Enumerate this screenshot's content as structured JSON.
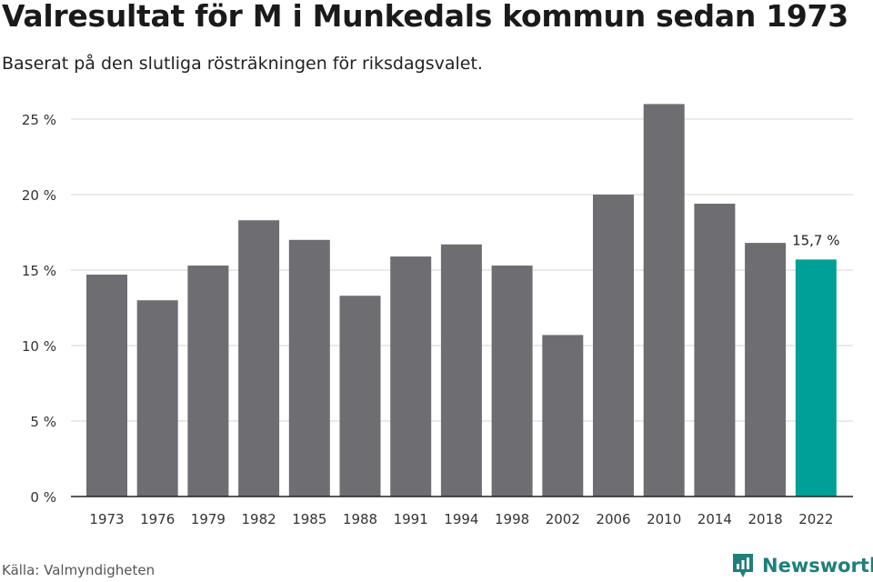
{
  "title": "Valresultat för M i Munkedals kommun sedan 1973",
  "subtitle": "Baserat på den slutliga rösträkningen för riksdagsvalet.",
  "source": "Källa: Valmyndigheten",
  "brand": {
    "name": "Newsworthy",
    "icon": "newsworthy-logo-icon",
    "color": "#1f7f7a"
  },
  "chart_data": {
    "type": "bar",
    "categories": [
      "1973",
      "1976",
      "1979",
      "1982",
      "1985",
      "1988",
      "1991",
      "1994",
      "1998",
      "2002",
      "2006",
      "2010",
      "2014",
      "2018",
      "2022"
    ],
    "values": [
      14.7,
      13.0,
      15.3,
      18.3,
      17.0,
      13.3,
      15.9,
      16.7,
      15.3,
      10.7,
      20.0,
      26.0,
      19.4,
      16.8,
      15.7
    ],
    "ylim": [
      0,
      27
    ],
    "yticks": [
      0,
      5,
      10,
      15,
      20,
      25
    ],
    "ytick_labels": [
      "0 %",
      "5 %",
      "10 %",
      "15 %",
      "20 %",
      "25 %"
    ],
    "grid": true,
    "bar_color": "#6e6d72",
    "highlight_color": "#00a096",
    "highlight_index": 14,
    "highlight_label": "15,7 %"
  }
}
